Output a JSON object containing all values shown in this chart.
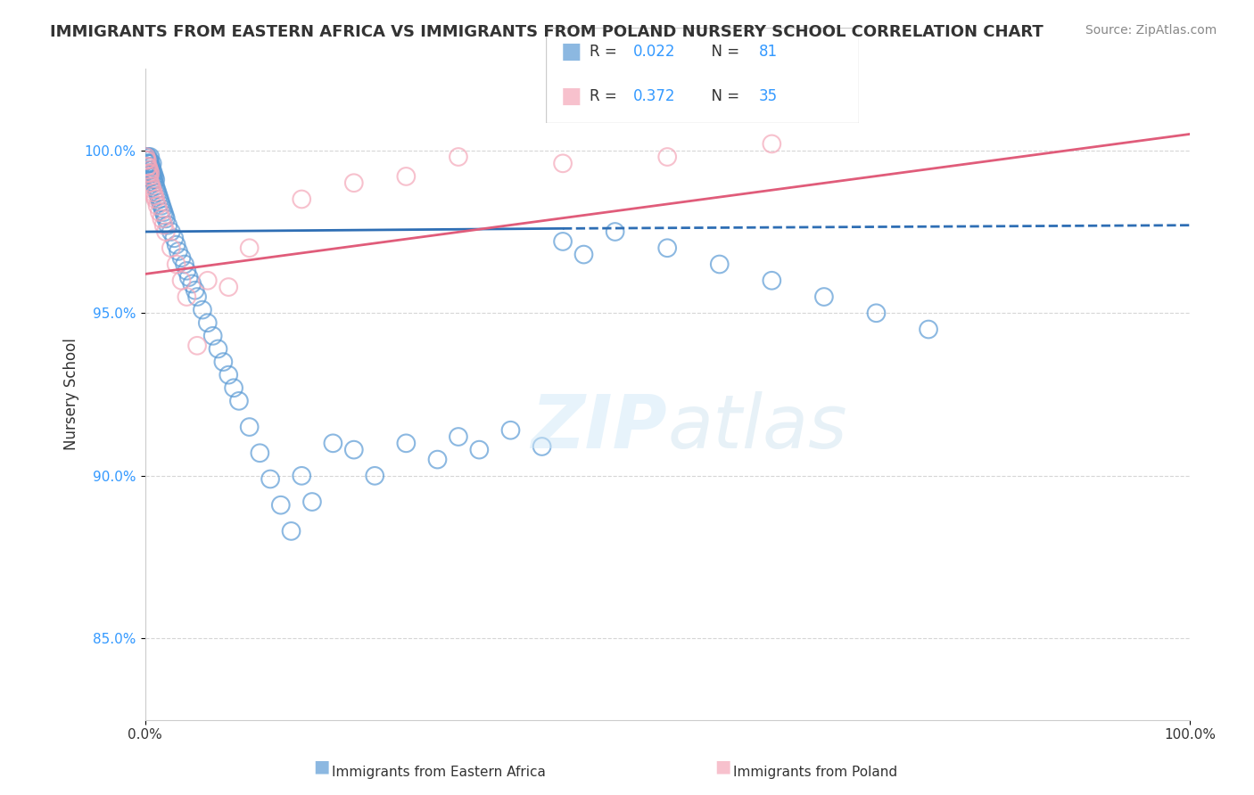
{
  "title": "IMMIGRANTS FROM EASTERN AFRICA VS IMMIGRANTS FROM POLAND NURSERY SCHOOL CORRELATION CHART",
  "source": "Source: ZipAtlas.com",
  "ylabel": "Nursery School",
  "xlabel": "",
  "xlim": [
    0,
    1.0
  ],
  "ylim": [
    0.825,
    1.025
  ],
  "yticks": [
    0.85,
    0.9,
    0.95,
    1.0
  ],
  "ytick_labels": [
    "85.0%",
    "90.0%",
    "95.0%",
    "100.0%"
  ],
  "xticks": [
    0.0,
    0.25,
    0.5,
    0.75,
    1.0
  ],
  "xtick_labels": [
    "0.0%",
    "",
    "",
    "",
    "100.0%"
  ],
  "blue_R": 0.022,
  "blue_N": 81,
  "pink_R": 0.372,
  "pink_N": 35,
  "blue_color": "#5b9bd5",
  "pink_color": "#f4a7b9",
  "blue_line_color": "#2e6eb4",
  "pink_line_color": "#e05c7a",
  "legend_label_blue": "Immigrants from Eastern Africa",
  "legend_label_pink": "Immigrants from Poland",
  "watermark": "ZIPatlas",
  "blue_points_x": [
    0.001,
    0.001,
    0.002,
    0.002,
    0.002,
    0.003,
    0.003,
    0.003,
    0.003,
    0.004,
    0.004,
    0.005,
    0.005,
    0.005,
    0.005,
    0.006,
    0.006,
    0.007,
    0.007,
    0.007,
    0.008,
    0.008,
    0.009,
    0.009,
    0.01,
    0.01,
    0.011,
    0.012,
    0.013,
    0.014,
    0.015,
    0.016,
    0.017,
    0.018,
    0.019,
    0.02,
    0.022,
    0.025,
    0.028,
    0.03,
    0.032,
    0.035,
    0.038,
    0.04,
    0.042,
    0.045,
    0.048,
    0.05,
    0.055,
    0.06,
    0.065,
    0.07,
    0.075,
    0.08,
    0.085,
    0.09,
    0.1,
    0.11,
    0.12,
    0.13,
    0.14,
    0.15,
    0.16,
    0.18,
    0.2,
    0.22,
    0.25,
    0.28,
    0.3,
    0.32,
    0.35,
    0.38,
    0.4,
    0.42,
    0.45,
    0.5,
    0.55,
    0.6,
    0.65,
    0.7,
    0.75
  ],
  "blue_points_y": [
    0.997,
    0.998,
    0.996,
    0.997,
    0.998,
    0.994,
    0.996,
    0.997,
    0.998,
    0.995,
    0.997,
    0.993,
    0.994,
    0.996,
    0.998,
    0.993,
    0.995,
    0.992,
    0.994,
    0.996,
    0.991,
    0.993,
    0.99,
    0.992,
    0.989,
    0.991,
    0.988,
    0.987,
    0.986,
    0.985,
    0.984,
    0.983,
    0.982,
    0.981,
    0.98,
    0.979,
    0.977,
    0.975,
    0.973,
    0.971,
    0.969,
    0.967,
    0.965,
    0.963,
    0.961,
    0.959,
    0.957,
    0.955,
    0.951,
    0.947,
    0.943,
    0.939,
    0.935,
    0.931,
    0.927,
    0.923,
    0.915,
    0.907,
    0.899,
    0.891,
    0.883,
    0.9,
    0.892,
    0.91,
    0.908,
    0.9,
    0.91,
    0.905,
    0.912,
    0.908,
    0.914,
    0.909,
    0.972,
    0.968,
    0.975,
    0.97,
    0.965,
    0.96,
    0.955,
    0.95,
    0.945
  ],
  "pink_points_x": [
    0.001,
    0.001,
    0.002,
    0.002,
    0.003,
    0.003,
    0.004,
    0.004,
    0.005,
    0.005,
    0.006,
    0.007,
    0.008,
    0.009,
    0.01,
    0.012,
    0.014,
    0.016,
    0.018,
    0.02,
    0.025,
    0.03,
    0.035,
    0.04,
    0.05,
    0.06,
    0.08,
    0.1,
    0.15,
    0.2,
    0.25,
    0.3,
    0.4,
    0.5,
    0.6
  ],
  "pink_points_y": [
    0.997,
    0.998,
    0.995,
    0.997,
    0.993,
    0.995,
    0.992,
    0.994,
    0.99,
    0.993,
    0.989,
    0.988,
    0.987,
    0.986,
    0.985,
    0.983,
    0.981,
    0.979,
    0.977,
    0.975,
    0.97,
    0.965,
    0.96,
    0.955,
    0.94,
    0.96,
    0.958,
    0.97,
    0.985,
    0.99,
    0.992,
    0.998,
    0.996,
    0.998,
    1.002
  ],
  "blue_trend_x": [
    0.0,
    0.4,
    1.0
  ],
  "blue_trend_y": [
    0.975,
    0.976,
    0.977
  ],
  "pink_trend_x": [
    0.0,
    1.0
  ],
  "pink_trend_y": [
    0.962,
    1.005
  ]
}
